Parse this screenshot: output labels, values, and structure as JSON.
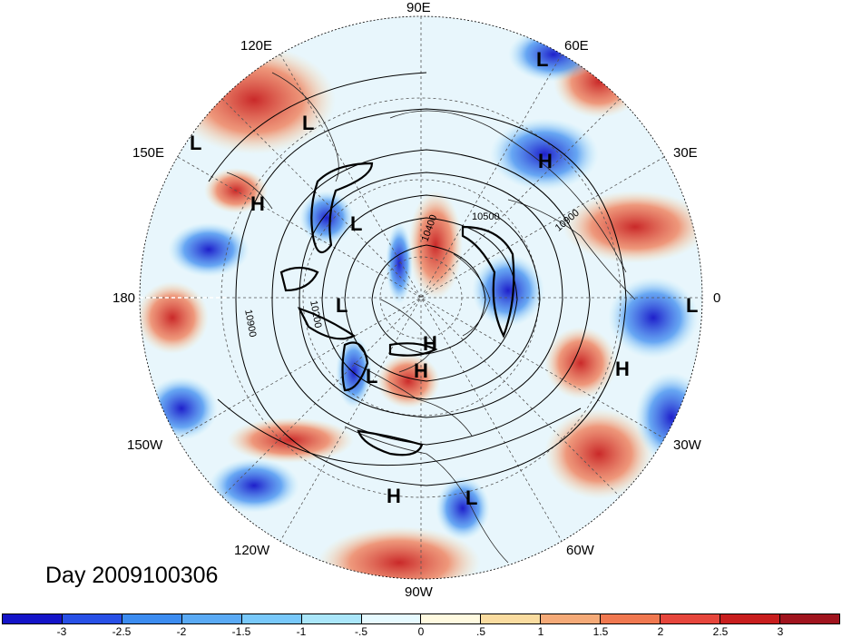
{
  "title": "Day 2009100306",
  "lon_labels": [
    "90E",
    "120E",
    "60E",
    "150E",
    "30E",
    "180",
    "0",
    "150W",
    "30W",
    "120W",
    "60W",
    "90W"
  ],
  "pressure_systems": [
    "L",
    "L",
    "L",
    "H",
    "H",
    "L",
    "L",
    "L",
    "H",
    "L",
    "H",
    "H",
    "L",
    "H"
  ],
  "contour_labels": [
    "10400",
    "10500",
    "10900",
    "10900",
    "10200"
  ],
  "colorbar": {
    "ticks": [
      "-3",
      "-2.5",
      "-2",
      "-1.5",
      "-1",
      "-.5",
      "0",
      ".5",
      "1",
      "1.5",
      "2",
      "2.5",
      "3"
    ],
    "colors": [
      "#1414c8",
      "#2850e6",
      "#3c8cf0",
      "#5aaaf5",
      "#78c8fa",
      "#aae6fa",
      "#e6faff",
      "#fffae0",
      "#fadca0",
      "#f5aa78",
      "#f07850",
      "#e6463c",
      "#c81e1e",
      "#a0141e"
    ]
  }
}
